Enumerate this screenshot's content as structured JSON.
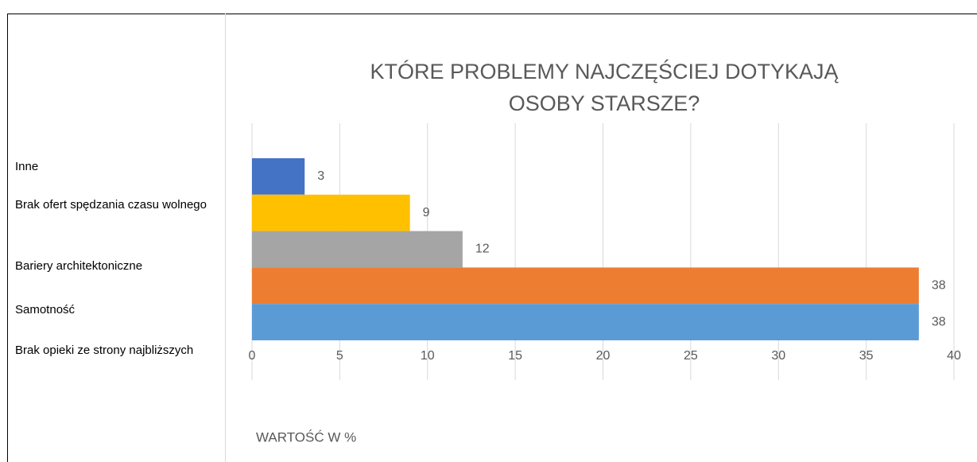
{
  "chart_data": {
    "type": "bar",
    "orientation": "horizontal",
    "title": [
      "KTÓRE PROBLEMY NAJCZĘŚCIEJ DOTYKAJĄ",
      "OSOBY STARSZE?"
    ],
    "categories": [
      "Inne",
      "Brak ofert spędzania czasu wolnego",
      "Bariery architektoniczne",
      "Samotność",
      "Brak opieki ze strony najbliższych"
    ],
    "values": [
      3,
      9,
      12,
      38,
      38
    ],
    "colors": [
      "#4472c4",
      "#ffc000",
      "#a5a5a5",
      "#ed7d31",
      "#5b9bd5"
    ],
    "xlim": [
      0,
      40
    ],
    "xticks": [
      0,
      5,
      10,
      15,
      20,
      25,
      30,
      35,
      40
    ],
    "xlabel": "WARTOŚĆ W %",
    "grid": true
  }
}
